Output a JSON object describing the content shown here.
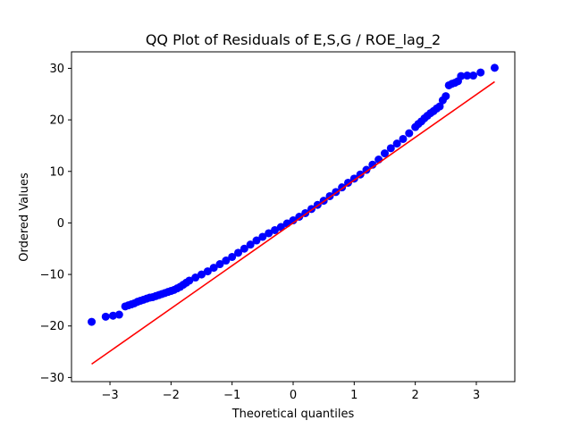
{
  "chart_data": {
    "type": "scatter",
    "title": "QQ Plot of Residuals of E,S,G / ROE_lag_2",
    "xlabel": "Theoretical quantiles",
    "ylabel": "Ordered Values",
    "xlim": [
      -3.63,
      3.63
    ],
    "ylim": [
      -30.8,
      33.2
    ],
    "xticks": [
      -3,
      -2,
      -1,
      0,
      1,
      2,
      3
    ],
    "xtick_labels": [
      "−3",
      "−2",
      "−1",
      "0",
      "1",
      "2",
      "3"
    ],
    "yticks": [
      -30,
      -20,
      -10,
      0,
      10,
      20,
      30
    ],
    "ytick_labels": [
      "−30",
      "−20",
      "−10",
      "0",
      "10",
      "20",
      "30"
    ],
    "grid": false,
    "colors": {
      "points": "#0000ff",
      "fit_line": "#ff0000"
    },
    "fit_line": {
      "x": [
        -3.3,
        3.3
      ],
      "y": [
        -27.4,
        27.4
      ]
    },
    "points": {
      "x": [
        -3.3,
        -3.07,
        -2.95,
        -2.85,
        -2.75,
        -2.7,
        -2.65,
        -2.6,
        -2.55,
        -2.5,
        -2.45,
        -2.4,
        -2.35,
        -2.3,
        -2.25,
        -2.2,
        -2.15,
        -2.1,
        -2.05,
        -2.0,
        -1.95,
        -1.9,
        -1.85,
        -1.8,
        -1.75,
        -1.7,
        -1.6,
        -1.5,
        -1.4,
        -1.3,
        -1.2,
        -1.1,
        -1.0,
        -0.9,
        -0.8,
        -0.7,
        -0.6,
        -0.5,
        -0.4,
        -0.3,
        -0.2,
        -0.1,
        0.0,
        0.1,
        0.2,
        0.3,
        0.4,
        0.5,
        0.6,
        0.7,
        0.8,
        0.9,
        1.0,
        1.1,
        1.2,
        1.3,
        1.4,
        1.5,
        1.6,
        1.7,
        1.8,
        1.9,
        2.0,
        2.05,
        2.1,
        2.15,
        2.2,
        2.25,
        2.3,
        2.35,
        2.4,
        2.45,
        2.5,
        2.55,
        2.6,
        2.65,
        2.7,
        2.75,
        2.85,
        2.95,
        3.07,
        3.3
      ],
      "y": [
        -19.2,
        -18.2,
        -18.0,
        -17.8,
        -16.2,
        -16.0,
        -15.8,
        -15.6,
        -15.3,
        -15.1,
        -14.9,
        -14.7,
        -14.5,
        -14.4,
        -14.2,
        -14.0,
        -13.8,
        -13.6,
        -13.4,
        -13.2,
        -13.0,
        -12.7,
        -12.4,
        -12.0,
        -11.6,
        -11.2,
        -10.6,
        -10.0,
        -9.4,
        -8.7,
        -8.0,
        -7.3,
        -6.6,
        -5.8,
        -5.0,
        -4.2,
        -3.4,
        -2.7,
        -2.0,
        -1.4,
        -0.8,
        -0.1,
        0.5,
        1.2,
        1.9,
        2.7,
        3.5,
        4.3,
        5.2,
        6.0,
        6.9,
        7.8,
        8.6,
        9.4,
        10.3,
        11.3,
        12.3,
        13.5,
        14.5,
        15.4,
        16.3,
        17.4,
        18.6,
        19.2,
        19.7,
        20.3,
        20.8,
        21.3,
        21.7,
        22.2,
        22.6,
        23.8,
        24.6,
        26.7,
        27.0,
        27.2,
        27.5,
        28.5,
        28.6,
        28.6,
        29.2,
        30.1
      ]
    }
  }
}
